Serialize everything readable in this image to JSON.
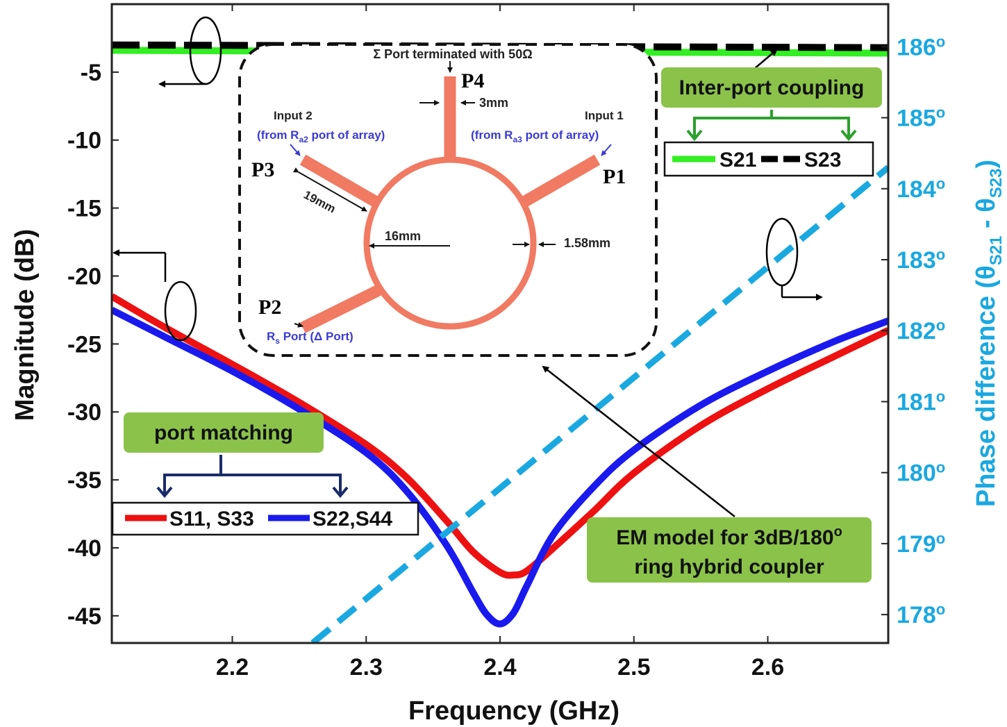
{
  "chart_data": {
    "type": "line",
    "xlabel": "Frequency (GHz)",
    "ylabel": "Magnitude (dB)",
    "y2label_main": "Phase difference (θ",
    "y2label_sub1": "S21",
    "y2label_mid": " - θ",
    "y2label_sub2": "S23",
    "y2label_end": ")",
    "xlim": [
      2.11,
      2.69
    ],
    "ylim": [
      -47,
      0
    ],
    "y2lim": [
      177.6,
      186.6
    ],
    "x_ticks": [
      2.2,
      2.3,
      2.4,
      2.5,
      2.6
    ],
    "x_tick_labels": [
      "2.2",
      "2.3",
      "2.4",
      "2.5",
      "2.6"
    ],
    "y_ticks": [
      -5,
      -10,
      -15,
      -20,
      -25,
      -30,
      -35,
      -40,
      -45
    ],
    "y_tick_labels": [
      "-5",
      "-10",
      "-15",
      "-20",
      "-25",
      "-30",
      "-35",
      "-40",
      "-45"
    ],
    "y2_ticks": [
      186,
      185,
      184,
      183,
      182,
      181,
      180,
      179,
      178
    ],
    "y2_tick_labels": [
      "186",
      "185",
      "184",
      "183",
      "182",
      "181",
      "180",
      "179",
      "178"
    ],
    "degree_symbol": "o",
    "series": [
      {
        "name": "S11, S33",
        "color": "#ee1111",
        "axis": "left",
        "style": "solid",
        "x": [
          2.11,
          2.15,
          2.2,
          2.25,
          2.3,
          2.33,
          2.36,
          2.38,
          2.4,
          2.41,
          2.42,
          2.44,
          2.47,
          2.5,
          2.55,
          2.6,
          2.65,
          2.69
        ],
        "y": [
          -21.5,
          -23.8,
          -26.5,
          -29.3,
          -32.4,
          -34.8,
          -38.0,
          -40.3,
          -41.8,
          -42.0,
          -41.7,
          -40.0,
          -37.3,
          -34.5,
          -31.0,
          -28.3,
          -25.9,
          -24.0
        ]
      },
      {
        "name": "S22, S44",
        "color": "#1a1aee",
        "axis": "left",
        "style": "solid",
        "x": [
          2.11,
          2.15,
          2.2,
          2.25,
          2.3,
          2.33,
          2.36,
          2.38,
          2.39,
          2.4,
          2.41,
          2.42,
          2.44,
          2.47,
          2.5,
          2.55,
          2.6,
          2.65,
          2.69
        ],
        "y": [
          -22.5,
          -24.5,
          -27.0,
          -29.8,
          -33.0,
          -35.8,
          -39.8,
          -43.3,
          -44.9,
          -45.6,
          -44.8,
          -42.8,
          -39.0,
          -35.5,
          -32.8,
          -29.5,
          -27.0,
          -24.8,
          -23.3
        ]
      },
      {
        "name": "S21",
        "color": "#33ee22",
        "axis": "left",
        "style": "solid",
        "x": [
          2.11,
          2.69
        ],
        "y": [
          -3.4,
          -3.6
        ]
      },
      {
        "name": "S23",
        "color": "#000000",
        "axis": "left",
        "style": "dashed",
        "x": [
          2.11,
          2.69
        ],
        "y": [
          -3.0,
          -3.2
        ]
      },
      {
        "name": "Phase difference",
        "color": "#1aa8e0",
        "axis": "right",
        "style": "dashed",
        "x": [
          2.26,
          2.69
        ],
        "y": [
          177.6,
          184.3
        ]
      }
    ],
    "legend_matching": {
      "s11_label": "S11, S33",
      "s22_label": "S22,S44"
    },
    "legend_coupling": {
      "s21_label": "S21",
      "s23_label": "S23"
    },
    "annotations": {
      "port_matching": "port matching",
      "inter_port_coupling": "Inter-port coupling",
      "em_model_line1": "EM model for 3dB/180",
      "em_model_line1_sup": "o",
      "em_model_line2": "ring hybrid coupler"
    },
    "inset": {
      "sigma_port": "Σ Port terminated with 50Ω",
      "p4": "P4",
      "p3": "P3",
      "p1": "P1",
      "p2": "P2",
      "w3mm": "3mm",
      "input2": "Input 2",
      "input2_from_a": "(from R",
      "input2_sub": "a2",
      "input2_from_b": " port of array)",
      "input1": "Input 1",
      "input1_from_a": "(from R",
      "input1_sub": "a3",
      "input1_from_b": " port of array)",
      "len19": "19mm",
      "d16": "16mm",
      "w158": "1.58mm",
      "p2_label_a": "R",
      "p2_label_sub": "s",
      "p2_label_b": " Port (Δ Port)"
    },
    "colors": {
      "ring": "#f07a62",
      "right_axis": "#1aa8e0",
      "callout_fill": "#8bc34a",
      "callout_arrow_green": "#2ca02c",
      "callout_arrow_navy": "#1a2a6a",
      "inset_blue_text": "#3a3ad0"
    },
    "grid": false
  }
}
